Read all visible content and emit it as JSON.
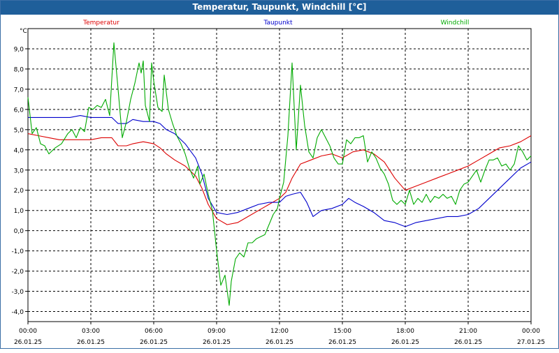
{
  "window": {
    "title": "Temperatur, Taupunkt, Windchill [°C]"
  },
  "colors": {
    "title_bg": "#1f5f9a",
    "temperatur": "#dd0000",
    "taupunkt": "#0000cc",
    "windchill": "#00aa00",
    "grid": "#000000"
  },
  "chart_data": {
    "type": "line",
    "title": "Temperatur, Taupunkt, Windchill [°C]",
    "ylabel": "°C",
    "ylim": [
      -4.5,
      10
    ],
    "xlim": [
      0,
      24
    ],
    "grid": true,
    "legend_placement": "top",
    "x_ticks": [
      {
        "x": 0,
        "time": "00:00",
        "date": "26.01.25"
      },
      {
        "x": 3,
        "time": "03:00",
        "date": "26.01.25"
      },
      {
        "x": 6,
        "time": "06:00",
        "date": "26.01.25"
      },
      {
        "x": 9,
        "time": "09:00",
        "date": "26.01.25"
      },
      {
        "x": 12,
        "time": "12:00",
        "date": "26.01.25"
      },
      {
        "x": 15,
        "time": "15:00",
        "date": "26.01.25"
      },
      {
        "x": 18,
        "time": "18:00",
        "date": "26.01.25"
      },
      {
        "x": 21,
        "time": "21:00",
        "date": "26.01.25"
      },
      {
        "x": 24,
        "time": "00:00",
        "date": "27.01.25"
      }
    ],
    "y_ticks": [
      {
        "v": 9,
        "label": "9,0"
      },
      {
        "v": 8,
        "label": "8,0"
      },
      {
        "v": 7,
        "label": "7,0"
      },
      {
        "v": 6,
        "label": "6,0"
      },
      {
        "v": 5,
        "label": "5,0"
      },
      {
        "v": 4,
        "label": "4,0"
      },
      {
        "v": 3,
        "label": "3,0"
      },
      {
        "v": 2,
        "label": "2,0"
      },
      {
        "v": 1,
        "label": "1,0"
      },
      {
        "v": 0,
        "label": "0,0"
      },
      {
        "v": -1,
        "label": "-1,0"
      },
      {
        "v": -2,
        "label": "-2,0"
      },
      {
        "v": -3,
        "label": "-3,0"
      },
      {
        "v": -4,
        "label": "-4,0"
      }
    ],
    "series": [
      {
        "name": "Temperatur",
        "color": "#dd0000",
        "points": [
          [
            0,
            4.8
          ],
          [
            0.5,
            4.7
          ],
          [
            1,
            4.6
          ],
          [
            1.5,
            4.5
          ],
          [
            2,
            4.5
          ],
          [
            2.5,
            4.5
          ],
          [
            3,
            4.5
          ],
          [
            3.5,
            4.6
          ],
          [
            4,
            4.6
          ],
          [
            4.3,
            4.2
          ],
          [
            4.7,
            4.2
          ],
          [
            5,
            4.3
          ],
          [
            5.5,
            4.4
          ],
          [
            6,
            4.3
          ],
          [
            6.3,
            4.1
          ],
          [
            6.6,
            3.8
          ],
          [
            7,
            3.5
          ],
          [
            7.5,
            3.2
          ],
          [
            8,
            2.7
          ],
          [
            8.3,
            2.1
          ],
          [
            8.6,
            1.3
          ],
          [
            9,
            0.6
          ],
          [
            9.5,
            0.3
          ],
          [
            10,
            0.4
          ],
          [
            10.5,
            0.7
          ],
          [
            11,
            1.0
          ],
          [
            11.5,
            1.3
          ],
          [
            12,
            1.6
          ],
          [
            12.3,
            1.9
          ],
          [
            12.6,
            2.6
          ],
          [
            13,
            3.3
          ],
          [
            13.5,
            3.5
          ],
          [
            14,
            3.7
          ],
          [
            14.5,
            3.8
          ],
          [
            15,
            3.6
          ],
          [
            15.5,
            3.9
          ],
          [
            16,
            4.0
          ],
          [
            16.5,
            3.8
          ],
          [
            17,
            3.4
          ],
          [
            17.5,
            2.6
          ],
          [
            18,
            2.0
          ],
          [
            18.5,
            2.2
          ],
          [
            19,
            2.4
          ],
          [
            19.5,
            2.6
          ],
          [
            20,
            2.8
          ],
          [
            20.5,
            3.0
          ],
          [
            21,
            3.2
          ],
          [
            21.5,
            3.5
          ],
          [
            22,
            3.8
          ],
          [
            22.5,
            4.1
          ],
          [
            23,
            4.2
          ],
          [
            23.5,
            4.4
          ],
          [
            24,
            4.7
          ]
        ]
      },
      {
        "name": "Taupunkt",
        "color": "#0000cc",
        "points": [
          [
            0,
            5.6
          ],
          [
            0.5,
            5.6
          ],
          [
            1,
            5.6
          ],
          [
            1.5,
            5.6
          ],
          [
            2,
            5.6
          ],
          [
            2.5,
            5.7
          ],
          [
            3,
            5.6
          ],
          [
            3.5,
            5.6
          ],
          [
            4,
            5.6
          ],
          [
            4.3,
            5.3
          ],
          [
            4.7,
            5.3
          ],
          [
            5,
            5.5
          ],
          [
            5.5,
            5.4
          ],
          [
            6,
            5.4
          ],
          [
            6.3,
            5.3
          ],
          [
            6.6,
            5.0
          ],
          [
            7,
            4.8
          ],
          [
            7.5,
            4.3
          ],
          [
            8,
            3.6
          ],
          [
            8.3,
            2.8
          ],
          [
            8.6,
            1.6
          ],
          [
            9,
            0.9
          ],
          [
            9.5,
            0.8
          ],
          [
            10,
            0.9
          ],
          [
            10.5,
            1.1
          ],
          [
            11,
            1.3
          ],
          [
            11.5,
            1.4
          ],
          [
            12,
            1.4
          ],
          [
            12.3,
            1.7
          ],
          [
            12.6,
            1.8
          ],
          [
            13,
            1.9
          ],
          [
            13.3,
            1.4
          ],
          [
            13.6,
            0.7
          ],
          [
            14,
            1.0
          ],
          [
            14.5,
            1.1
          ],
          [
            15,
            1.3
          ],
          [
            15.3,
            1.6
          ],
          [
            15.6,
            1.4
          ],
          [
            16,
            1.2
          ],
          [
            16.5,
            0.9
          ],
          [
            17,
            0.5
          ],
          [
            17.5,
            0.4
          ],
          [
            18,
            0.2
          ],
          [
            18.5,
            0.4
          ],
          [
            19,
            0.5
          ],
          [
            19.5,
            0.6
          ],
          [
            20,
            0.7
          ],
          [
            20.5,
            0.7
          ],
          [
            21,
            0.8
          ],
          [
            21.5,
            1.1
          ],
          [
            22,
            1.6
          ],
          [
            22.5,
            2.1
          ],
          [
            23,
            2.6
          ],
          [
            23.5,
            3.1
          ],
          [
            24,
            3.4
          ]
        ]
      },
      {
        "name": "Windchill",
        "color": "#00aa00",
        "points": [
          [
            0,
            6.6
          ],
          [
            0.2,
            4.8
          ],
          [
            0.4,
            5.1
          ],
          [
            0.6,
            4.3
          ],
          [
            0.8,
            4.2
          ],
          [
            1,
            3.8
          ],
          [
            1.3,
            4.1
          ],
          [
            1.6,
            4.3
          ],
          [
            1.9,
            4.8
          ],
          [
            2.1,
            5.0
          ],
          [
            2.3,
            4.6
          ],
          [
            2.5,
            5.1
          ],
          [
            2.7,
            4.9
          ],
          [
            2.9,
            6.1
          ],
          [
            3.1,
            6.0
          ],
          [
            3.3,
            6.2
          ],
          [
            3.5,
            6.1
          ],
          [
            3.7,
            6.5
          ],
          [
            3.9,
            5.7
          ],
          [
            4.1,
            9.3
          ],
          [
            4.3,
            7.0
          ],
          [
            4.5,
            4.6
          ],
          [
            4.7,
            5.4
          ],
          [
            4.9,
            6.5
          ],
          [
            5.1,
            7.3
          ],
          [
            5.3,
            8.3
          ],
          [
            5.4,
            7.8
          ],
          [
            5.5,
            8.4
          ],
          [
            5.6,
            6.2
          ],
          [
            5.8,
            5.4
          ],
          [
            5.9,
            8.3
          ],
          [
            6.0,
            7.4
          ],
          [
            6.2,
            6.1
          ],
          [
            6.4,
            5.9
          ],
          [
            6.5,
            7.7
          ],
          [
            6.7,
            6.0
          ],
          [
            6.9,
            5.3
          ],
          [
            7.1,
            4.7
          ],
          [
            7.3,
            4.3
          ],
          [
            7.5,
            3.8
          ],
          [
            7.7,
            3.1
          ],
          [
            7.9,
            2.6
          ],
          [
            8.1,
            3.2
          ],
          [
            8.2,
            2.3
          ],
          [
            8.4,
            2.8
          ],
          [
            8.6,
            1.8
          ],
          [
            8.8,
            1.0
          ],
          [
            9.0,
            -1.0
          ],
          [
            9.2,
            -2.7
          ],
          [
            9.4,
            -2.2
          ],
          [
            9.6,
            -3.7
          ],
          [
            9.7,
            -2.5
          ],
          [
            9.9,
            -1.4
          ],
          [
            10.1,
            -1.1
          ],
          [
            10.3,
            -1.3
          ],
          [
            10.5,
            -0.6
          ],
          [
            10.7,
            -0.6
          ],
          [
            10.9,
            -0.4
          ],
          [
            11.1,
            -0.3
          ],
          [
            11.3,
            -0.2
          ],
          [
            11.5,
            0.3
          ],
          [
            11.7,
            0.8
          ],
          [
            11.9,
            1.1
          ],
          [
            12.0,
            1.6
          ],
          [
            12.2,
            2.4
          ],
          [
            12.4,
            4.7
          ],
          [
            12.6,
            8.3
          ],
          [
            12.8,
            4.0
          ],
          [
            13.0,
            7.2
          ],
          [
            13.2,
            5.2
          ],
          [
            13.4,
            3.9
          ],
          [
            13.6,
            3.6
          ],
          [
            13.8,
            4.6
          ],
          [
            14.0,
            5.0
          ],
          [
            14.2,
            4.6
          ],
          [
            14.4,
            4.2
          ],
          [
            14.6,
            3.6
          ],
          [
            14.8,
            3.3
          ],
          [
            15.0,
            3.3
          ],
          [
            15.2,
            4.5
          ],
          [
            15.4,
            4.3
          ],
          [
            15.6,
            4.6
          ],
          [
            15.8,
            4.6
          ],
          [
            16.0,
            4.7
          ],
          [
            16.2,
            3.4
          ],
          [
            16.4,
            3.9
          ],
          [
            16.6,
            3.6
          ],
          [
            16.8,
            3.1
          ],
          [
            17.0,
            2.8
          ],
          [
            17.2,
            2.3
          ],
          [
            17.4,
            1.5
          ],
          [
            17.6,
            1.3
          ],
          [
            17.8,
            1.5
          ],
          [
            18.0,
            1.3
          ],
          [
            18.2,
            2.0
          ],
          [
            18.4,
            1.3
          ],
          [
            18.6,
            1.6
          ],
          [
            18.8,
            1.4
          ],
          [
            19.0,
            1.8
          ],
          [
            19.2,
            1.4
          ],
          [
            19.4,
            1.7
          ],
          [
            19.6,
            1.6
          ],
          [
            19.8,
            1.8
          ],
          [
            20.0,
            1.6
          ],
          [
            20.2,
            1.7
          ],
          [
            20.4,
            1.3
          ],
          [
            20.6,
            2.0
          ],
          [
            20.8,
            2.3
          ],
          [
            21.0,
            2.4
          ],
          [
            21.2,
            2.7
          ],
          [
            21.4,
            3.0
          ],
          [
            21.6,
            2.4
          ],
          [
            21.8,
            3.0
          ],
          [
            22.0,
            3.5
          ],
          [
            22.2,
            3.5
          ],
          [
            22.4,
            3.6
          ],
          [
            22.6,
            3.2
          ],
          [
            22.8,
            3.3
          ],
          [
            23.0,
            3.0
          ],
          [
            23.2,
            3.3
          ],
          [
            23.4,
            4.2
          ],
          [
            23.6,
            3.9
          ],
          [
            23.8,
            3.5
          ],
          [
            24.0,
            3.7
          ]
        ]
      }
    ]
  }
}
